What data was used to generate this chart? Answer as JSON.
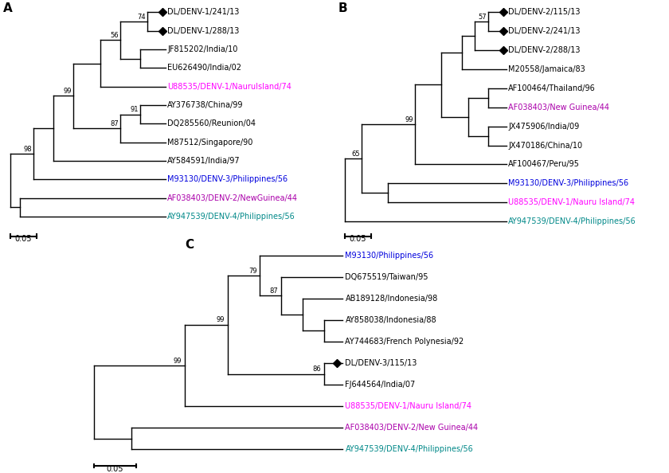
{
  "background": "none",
  "panels": [
    {
      "label": "A",
      "leaves": [
        {
          "name": "DL/DENV-1/241/13",
          "color": "#000000",
          "diamond": true
        },
        {
          "name": "DL/DENV-1/288/13",
          "color": "#000000",
          "diamond": true
        },
        {
          "name": "JF815202/India/10",
          "color": "#000000",
          "diamond": false
        },
        {
          "name": "EU626490/India/02",
          "color": "#000000",
          "diamond": false
        },
        {
          "name": "U88535/DENV-1/NauruIsland/74",
          "color": "#ff00ff",
          "diamond": false
        },
        {
          "name": "AY376738/China/99",
          "color": "#000000",
          "diamond": false
        },
        {
          "name": "DQ285560/Reunion/04",
          "color": "#000000",
          "diamond": false
        },
        {
          "name": "M87512/Singapore/90",
          "color": "#000000",
          "diamond": false
        },
        {
          "name": "AY584591/India/97",
          "color": "#000000",
          "diamond": false
        },
        {
          "name": "M93130/DENV-3/Philippines/56",
          "color": "#0000dd",
          "diamond": false
        },
        {
          "name": "AF038403/DENV-2/NewGuinea/44",
          "color": "#aa00aa",
          "diamond": false
        },
        {
          "name": "AY947539/DENV-4/Philippines/56",
          "color": "#008888",
          "diamond": false
        }
      ]
    },
    {
      "label": "B",
      "leaves": [
        {
          "name": "DL/DENV-2/115/13",
          "color": "#000000",
          "diamond": true
        },
        {
          "name": "DL/DENV-2/241/13",
          "color": "#000000",
          "diamond": true
        },
        {
          "name": "DL/DENV-2/288/13",
          "color": "#000000",
          "diamond": true
        },
        {
          "name": "M20558/Jamaica/83",
          "color": "#000000",
          "diamond": false
        },
        {
          "name": "AF100464/Thailand/96",
          "color": "#000000",
          "diamond": false
        },
        {
          "name": "AF038403/New Guinea/44",
          "color": "#aa00aa",
          "diamond": false
        },
        {
          "name": "JX475906/India/09",
          "color": "#000000",
          "diamond": false
        },
        {
          "name": "JX470186/China/10",
          "color": "#000000",
          "diamond": false
        },
        {
          "name": "AF100467/Peru/95",
          "color": "#000000",
          "diamond": false
        },
        {
          "name": "M93130/DENV-3/Philippines/56",
          "color": "#0000dd",
          "diamond": false
        },
        {
          "name": "U88535/DENV-1/Nauru Island/74",
          "color": "#ff00ff",
          "diamond": false
        },
        {
          "name": "AY947539/DENV-4/Philippines/56",
          "color": "#008888",
          "diamond": false
        }
      ]
    },
    {
      "label": "C",
      "leaves": [
        {
          "name": "M93130/Philippines/56",
          "color": "#0000dd",
          "diamond": false
        },
        {
          "name": "DQ675519/Taiwan/95",
          "color": "#000000",
          "diamond": false
        },
        {
          "name": "AB189128/Indonesia/98",
          "color": "#000000",
          "diamond": false
        },
        {
          "name": "AY858038/Indonesia/88",
          "color": "#000000",
          "diamond": false
        },
        {
          "name": "AY744683/French Polynesia/92",
          "color": "#000000",
          "diamond": false
        },
        {
          "name": "DL/DENV-3/115/13",
          "color": "#000000",
          "diamond": true
        },
        {
          "name": "FJ644564/India/07",
          "color": "#000000",
          "diamond": false
        },
        {
          "name": "U88535/DENV-1/Nauru Island/74",
          "color": "#ff00ff",
          "diamond": false
        },
        {
          "name": "AF038403/DENV-2/New Guinea/44",
          "color": "#aa00aa",
          "diamond": false
        },
        {
          "name": "AY947539/DENV-4/Philippines/56",
          "color": "#008888",
          "diamond": false
        }
      ]
    }
  ]
}
